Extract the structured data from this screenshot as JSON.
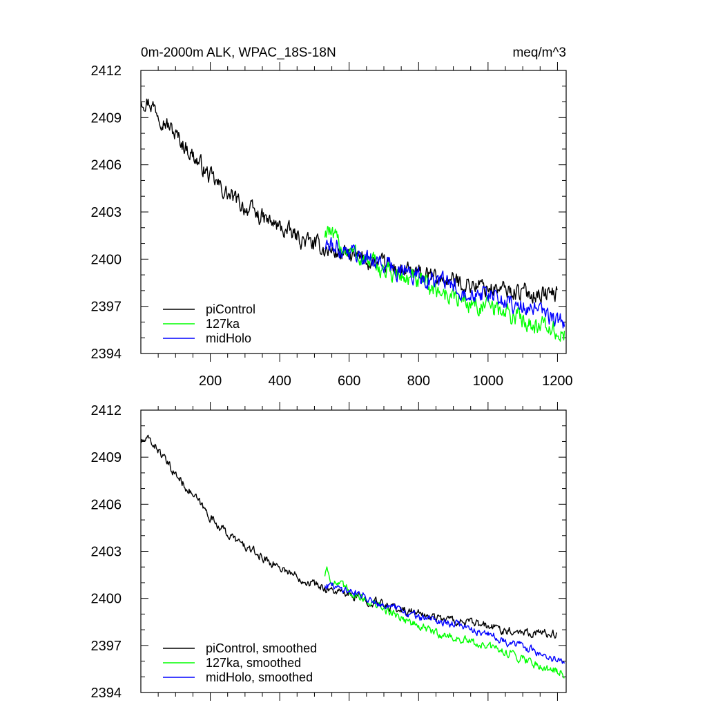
{
  "chart_data": [
    {
      "type": "line",
      "title": "0m-2000m ALK, WPAC_18S-18N",
      "units": "meq/m^3",
      "xlabel": "",
      "ylabel": "",
      "xlim": [
        0,
        1225
      ],
      "ylim": [
        2394,
        2412
      ],
      "x_ticks": [
        200,
        400,
        600,
        800,
        1000,
        1200
      ],
      "x_tick_labels": [
        "200",
        "400",
        "600",
        "800",
        "1000",
        "1200"
      ],
      "y_ticks": [
        2394,
        2397,
        2400,
        2403,
        2406,
        2409,
        2412
      ],
      "y_tick_labels": [
        "2394",
        "2397",
        "2400",
        "2403",
        "2406",
        "2409",
        "2412"
      ],
      "legend_position": "bottom-left",
      "series": [
        {
          "name": "piControl",
          "color": "#000000",
          "noise": 0.45,
          "x": [
            1,
            25,
            50,
            75,
            100,
            150,
            200,
            250,
            300,
            350,
            400,
            450,
            500,
            550,
            600,
            650,
            700,
            750,
            800,
            850,
            900,
            950,
            1000,
            1050,
            1100,
            1150,
            1200
          ],
          "values": [
            2410.2,
            2410.0,
            2409.4,
            2408.6,
            2407.9,
            2406.6,
            2405.2,
            2404.1,
            2403.3,
            2402.6,
            2402.0,
            2401.4,
            2400.9,
            2400.5,
            2400.2,
            2399.9,
            2399.6,
            2399.3,
            2399.0,
            2398.8,
            2398.6,
            2398.4,
            2398.2,
            2398.0,
            2397.9,
            2397.8,
            2397.8
          ]
        },
        {
          "name": "127ka",
          "color": "#00ff00",
          "noise": 0.5,
          "x": [
            530,
            540,
            550,
            600,
            650,
            700,
            750,
            800,
            850,
            900,
            950,
            1000,
            1050,
            1100,
            1150,
            1200,
            1220
          ],
          "values": [
            2401.6,
            2402.1,
            2401.3,
            2400.5,
            2399.9,
            2399.3,
            2398.9,
            2398.5,
            2398.1,
            2397.6,
            2397.2,
            2396.9,
            2396.6,
            2396.2,
            2395.8,
            2395.3,
            2395.1
          ]
        },
        {
          "name": "midHolo",
          "color": "#0000ff",
          "noise": 0.45,
          "x": [
            530,
            550,
            600,
            650,
            700,
            750,
            800,
            850,
            900,
            950,
            1000,
            1050,
            1100,
            1150,
            1200,
            1220
          ],
          "values": [
            2400.9,
            2400.8,
            2400.6,
            2400.1,
            2399.7,
            2399.3,
            2398.9,
            2398.6,
            2398.3,
            2398.0,
            2397.7,
            2397.3,
            2397.0,
            2396.6,
            2396.1,
            2395.9
          ]
        }
      ]
    },
    {
      "type": "line",
      "title": "",
      "xlabel": "",
      "ylabel": "",
      "xlim": [
        0,
        1225
      ],
      "ylim": [
        2394,
        2412
      ],
      "x_ticks": [
        200,
        400,
        600,
        800,
        1000,
        1200
      ],
      "x_tick_labels": [],
      "y_ticks": [
        2394,
        2397,
        2400,
        2403,
        2406,
        2409,
        2412
      ],
      "y_tick_labels": [
        "2394",
        "2397",
        "2400",
        "2403",
        "2406",
        "2409",
        "2412"
      ],
      "legend_position": "bottom-left",
      "series": [
        {
          "name": "piControl, smoothed",
          "color": "#000000",
          "noise": 0.22,
          "x": [
            1,
            25,
            50,
            75,
            100,
            150,
            200,
            250,
            300,
            350,
            400,
            450,
            500,
            550,
            600,
            650,
            700,
            750,
            800,
            850,
            900,
            950,
            1000,
            1050,
            1100,
            1150,
            1200
          ],
          "values": [
            2410.0,
            2410.1,
            2409.5,
            2408.6,
            2407.9,
            2406.6,
            2405.2,
            2404.1,
            2403.3,
            2402.6,
            2402.0,
            2401.4,
            2400.9,
            2400.5,
            2400.2,
            2399.9,
            2399.6,
            2399.3,
            2399.0,
            2398.8,
            2398.6,
            2398.4,
            2398.2,
            2398.0,
            2397.9,
            2397.8,
            2397.7
          ]
        },
        {
          "name": "127ka, smoothed",
          "color": "#00ff00",
          "noise": 0.22,
          "x": [
            530,
            535,
            545,
            600,
            650,
            700,
            750,
            800,
            850,
            900,
            950,
            1000,
            1050,
            1100,
            1150,
            1200,
            1220
          ],
          "values": [
            2401.5,
            2402.1,
            2401.2,
            2400.5,
            2399.9,
            2399.3,
            2398.8,
            2398.2,
            2397.8,
            2397.5,
            2397.2,
            2396.9,
            2396.6,
            2396.2,
            2395.7,
            2395.3,
            2395.2
          ]
        },
        {
          "name": "midHolo, smoothed",
          "color": "#0000ff",
          "noise": 0.2,
          "x": [
            530,
            550,
            600,
            650,
            700,
            750,
            800,
            850,
            900,
            950,
            1000,
            1050,
            1100,
            1150,
            1200,
            1220
          ],
          "values": [
            2400.9,
            2400.8,
            2400.5,
            2400.1,
            2399.6,
            2399.2,
            2398.8,
            2398.6,
            2398.4,
            2398.1,
            2397.7,
            2397.3,
            2396.9,
            2396.5,
            2396.0,
            2395.8
          ]
        }
      ]
    }
  ]
}
